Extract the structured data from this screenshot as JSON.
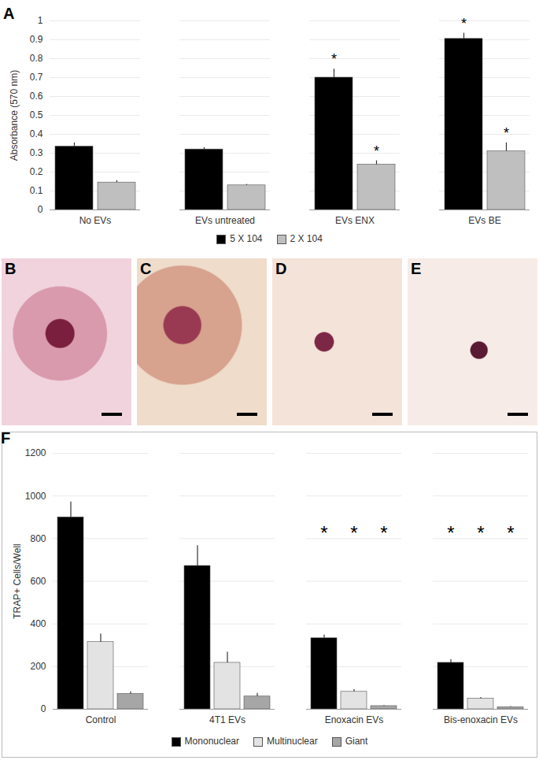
{
  "chart_data": [
    {
      "type": "bar",
      "title": "A",
      "ylabel": "Absorbance (570 nm)",
      "categories": [
        "No EVs",
        "EVs untreated",
        "EVs ENX",
        "EVs BE"
      ],
      "series": [
        {
          "name": "5 X 104",
          "color": "#000000",
          "values": [
            0.335,
            0.32,
            0.7,
            0.905
          ],
          "errors": [
            0.02,
            0.01,
            0.045,
            0.03
          ]
        },
        {
          "name": "2 X 104",
          "color": "#bfbfbf",
          "values": [
            0.145,
            0.13,
            0.24,
            0.31
          ],
          "errors": [
            0.01,
            0.005,
            0.02,
            0.045
          ]
        }
      ],
      "ylim": [
        0,
        1
      ],
      "yticks": [
        0,
        0.1,
        0.2,
        0.3,
        0.4,
        0.5,
        0.6,
        0.7,
        0.8,
        0.9,
        1
      ],
      "grid": true,
      "legend": "bottom",
      "annotations": [
        {
          "text": "*",
          "category": "EVs ENX",
          "series": "5 X 104"
        },
        {
          "text": "*",
          "category": "EVs ENX",
          "series": "2 X 104"
        },
        {
          "text": "*",
          "category": "EVs BE",
          "series": "5 X 104"
        },
        {
          "text": "*",
          "category": "EVs BE",
          "series": "2 X 104"
        }
      ]
    },
    {
      "type": "bar",
      "title": "F",
      "ylabel": "TRAP+ Cells/Well",
      "categories": [
        "Control",
        "4T1 EVs",
        "Enoxacin EVs",
        "Bis-enoxacin EVs"
      ],
      "series": [
        {
          "name": "Mononuclear",
          "color": "#000000",
          "values": [
            900,
            672,
            333,
            218
          ],
          "errors": [
            72,
            95,
            15,
            15
          ]
        },
        {
          "name": "Multinuclear",
          "color": "#e3e3e3",
          "values": [
            315,
            218,
            82,
            50
          ],
          "errors": [
            38,
            50,
            10,
            5
          ]
        },
        {
          "name": "Giant",
          "color": "#a6a6a6",
          "values": [
            72,
            60,
            15,
            10
          ],
          "errors": [
            10,
            15,
            3,
            3
          ]
        }
      ],
      "ylim": [
        0,
        1200
      ],
      "yticks": [
        0,
        200,
        400,
        600,
        800,
        1000,
        1200
      ],
      "grid": true,
      "legend": "bottom",
      "annotations": [
        {
          "text": "*",
          "category": "Enoxacin EVs",
          "series": "Mononuclear"
        },
        {
          "text": "*",
          "category": "Enoxacin EVs",
          "series": "Multinuclear"
        },
        {
          "text": "*",
          "category": "Enoxacin EVs",
          "series": "Giant"
        },
        {
          "text": "*",
          "category": "Bis-enoxacin EVs",
          "series": "Mononuclear"
        },
        {
          "text": "*",
          "category": "Bis-enoxacin EVs",
          "series": "Multinuclear"
        },
        {
          "text": "*",
          "category": "Bis-enoxacin EVs",
          "series": "Giant"
        }
      ]
    }
  ],
  "image_panels": [
    "B",
    "C",
    "D",
    "E"
  ]
}
